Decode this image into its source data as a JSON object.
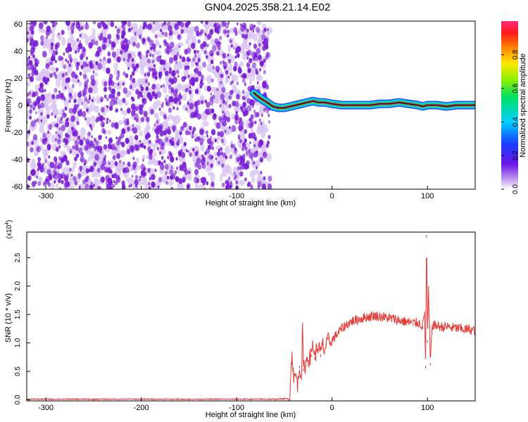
{
  "title": "GN04.2025.358.21.14.E02",
  "colors": {
    "snr_line": "#e53935",
    "spectrogram_blob": "#7a1fd6",
    "spectrogram_light": "#d8c4f2",
    "signal_core": "#e8175d",
    "axis": "#000000",
    "background": "#ffffff"
  },
  "chart_data": [
    {
      "type": "heatmap",
      "xlabel": "Height of straight line (km)",
      "ylabel": "Frequency (Hz)",
      "xlim": [
        -320,
        150
      ],
      "ylim": [
        -62,
        62
      ],
      "x_ticks": [
        -300,
        -200,
        -100,
        0,
        100
      ],
      "y_ticks": [
        60,
        40,
        20,
        0,
        -20,
        -40,
        -60
      ],
      "noise_region_x": [
        -320,
        -65
      ],
      "signal_track": {
        "x": [
          -82,
          -75,
          -68,
          -62,
          -56,
          -50,
          -44,
          -38,
          -32,
          -26,
          -20,
          -14,
          -8,
          0,
          10,
          20,
          30,
          40,
          50,
          60,
          70,
          80,
          90,
          95,
          100,
          110,
          120,
          130,
          140,
          150
        ],
        "y": [
          9,
          5,
          2,
          -1,
          -2,
          -2,
          -1,
          0,
          1,
          2,
          3,
          2,
          2,
          1,
          0,
          0,
          0,
          0,
          1,
          1,
          2,
          1,
          0,
          -1,
          0,
          0,
          -1,
          0,
          0,
          0
        ]
      },
      "colorbar": {
        "label": "Normalized spectral amplitude",
        "range": [
          0,
          1
        ],
        "ticks": [
          0.0,
          0.2,
          0.4,
          0.6,
          0.8
        ],
        "tick_labels": [
          "0.0",
          "0.2",
          "0.4",
          "0.6",
          "0.8"
        ]
      },
      "grid": false
    },
    {
      "type": "line",
      "xlabel": "Height of straight line (km)",
      "ylabel": "SNR (10 * v/v)",
      "scale_label": "(x10^4)",
      "xlim": [
        -320,
        150
      ],
      "ylim": [
        -0.02,
        2.95
      ],
      "x_ticks": [
        -300,
        -200,
        -100,
        0,
        100
      ],
      "y_ticks": [
        0.0,
        0.5,
        1.0,
        1.5,
        2.0,
        2.5
      ],
      "y_tick_labels": [
        "0.0",
        "0.5",
        "1.0",
        "1.5",
        "2.0",
        "2.5"
      ],
      "series": [
        {
          "x": [
            -320,
            -250,
            -150,
            -60,
            -45,
            -44,
            -42,
            -40,
            -38,
            -36,
            -34,
            -32,
            -31,
            -30,
            -28,
            -26,
            -24,
            -22,
            -20,
            -18,
            -16,
            -14,
            -12,
            -10,
            -8,
            -6,
            -4,
            -2,
            0,
            5,
            10,
            15,
            20,
            25,
            30,
            35,
            40,
            45,
            50,
            55,
            60,
            65,
            70,
            75,
            80,
            85,
            90,
            95,
            97,
            98,
            99,
            100,
            101,
            102,
            103,
            105,
            110,
            115,
            120,
            125,
            130,
            135,
            140,
            145,
            150
          ],
          "y": [
            0.01,
            0.01,
            0.01,
            0.01,
            0.02,
            0.2,
            0.85,
            0.35,
            0.45,
            0.25,
            0.6,
            0.4,
            1.35,
            0.55,
            0.6,
            0.75,
            0.7,
            0.8,
            1.0,
            0.75,
            0.9,
            0.95,
            0.8,
            1.0,
            0.85,
            1.0,
            1.1,
            1.0,
            1.05,
            1.15,
            1.25,
            1.32,
            1.38,
            1.4,
            1.43,
            1.45,
            1.47,
            1.48,
            1.47,
            1.45,
            1.44,
            1.42,
            1.4,
            1.38,
            1.37,
            1.35,
            1.36,
            1.3,
            1.55,
            0.6,
            2.9,
            1.05,
            1.95,
            1.3,
            0.65,
            1.32,
            1.3,
            1.28,
            1.29,
            1.27,
            1.26,
            1.25,
            1.24,
            1.23,
            1.22
          ]
        }
      ],
      "grid": false
    }
  ]
}
